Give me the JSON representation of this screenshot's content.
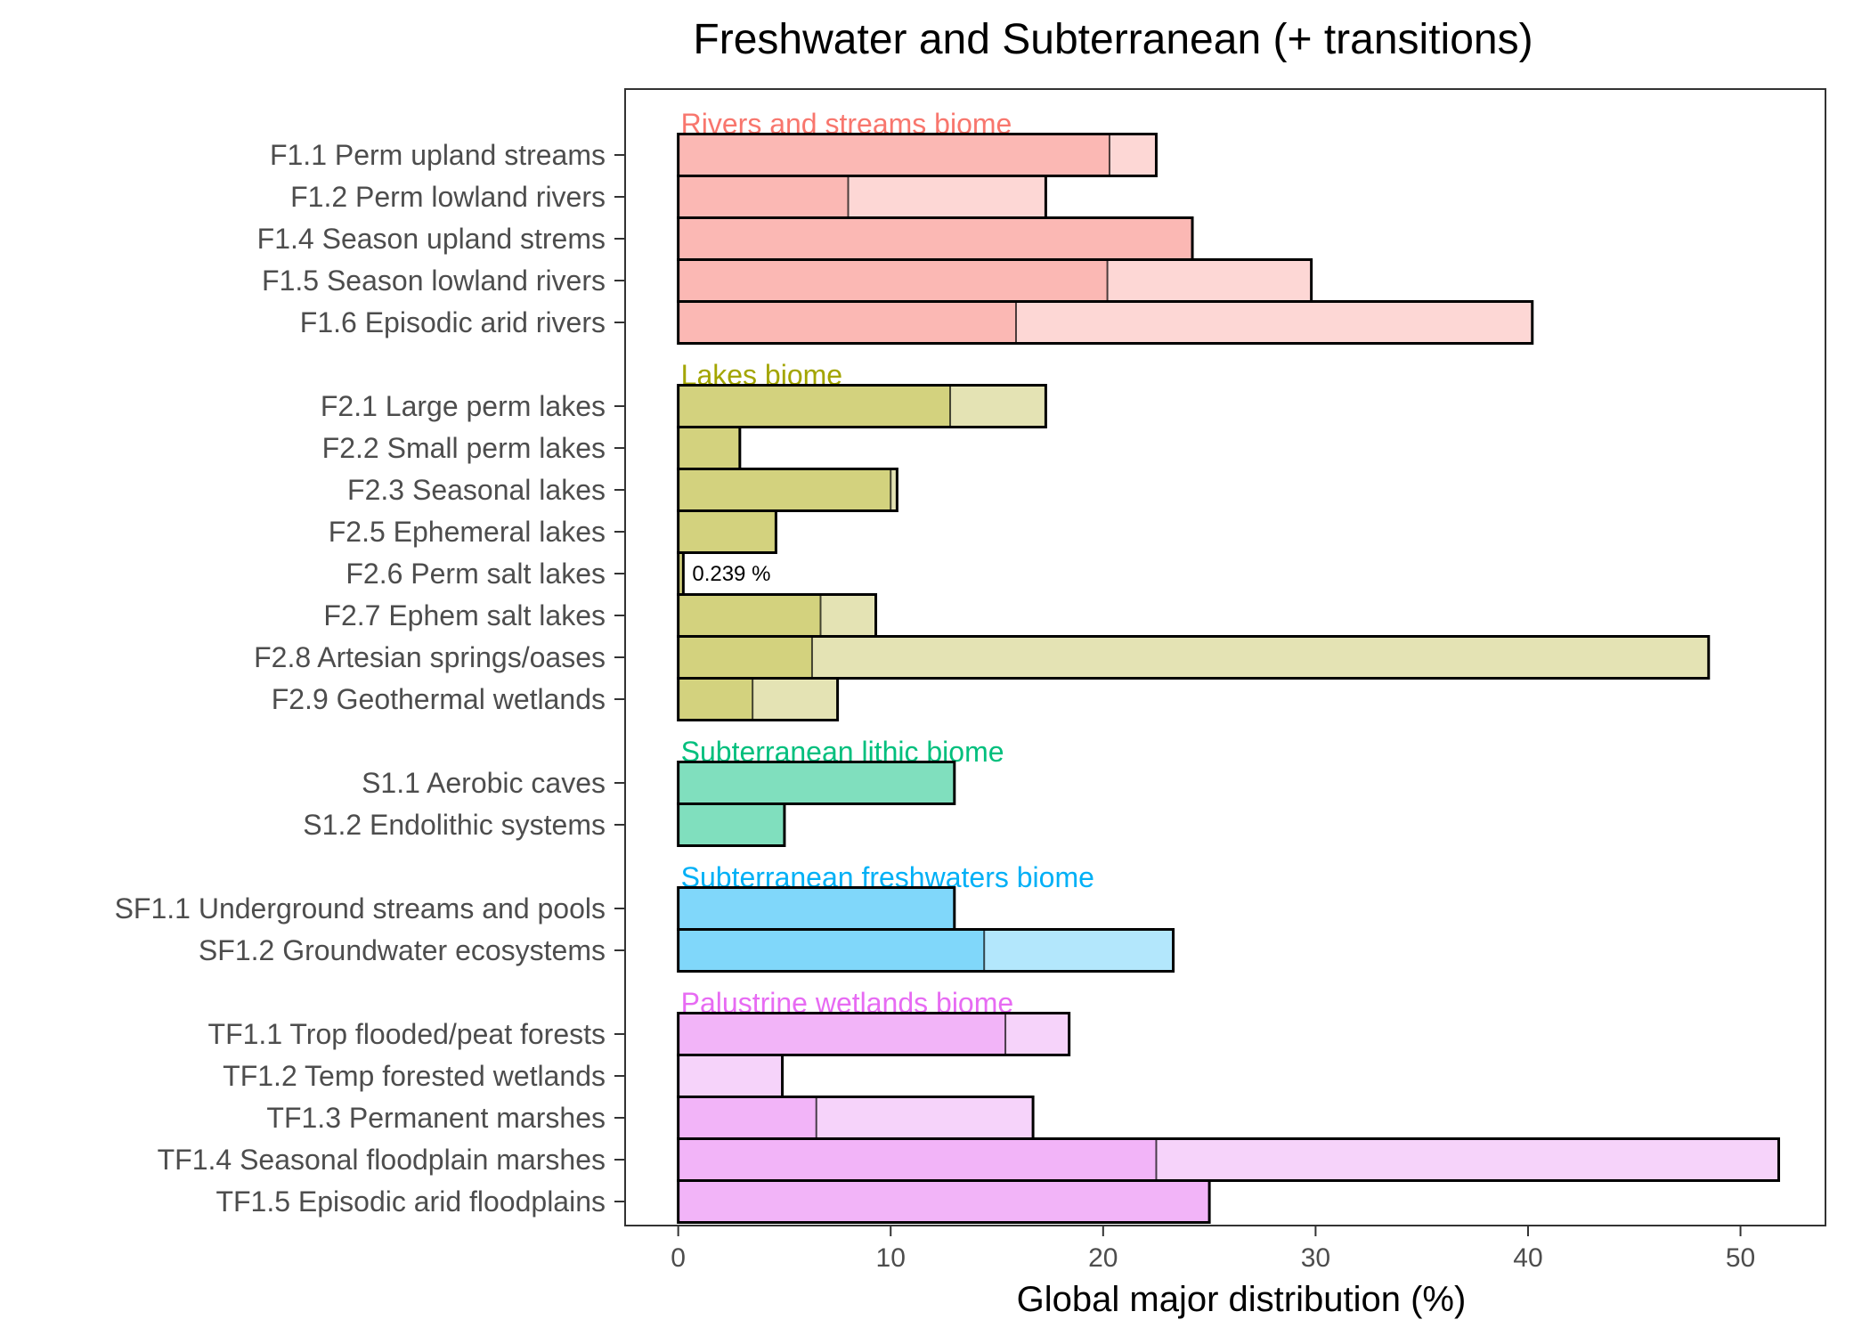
{
  "chart_data": {
    "type": "bar",
    "orientation": "horizontal",
    "stacked": true,
    "title": "Freshwater and Subterranean (+ transitions)",
    "xlabel": "Global major distribution (%)",
    "ylabel": "",
    "xlim": [
      -2.5,
      54
    ],
    "xticks": [
      0,
      10,
      20,
      30,
      40,
      50
    ],
    "grid": false,
    "series": [
      {
        "name": "major",
        "shade": "dark"
      },
      {
        "name": "transitions",
        "shade": "light"
      }
    ],
    "groups": [
      {
        "name": "Rivers and streams biome",
        "color": "#F8766D",
        "fill": "#FBB8B4",
        "fill_light": "#FDD7D5",
        "items": [
          {
            "label": "F1.1 Perm upland streams",
            "major": 20.3,
            "total": 22.5
          },
          {
            "label": "F1.2 Perm lowland rivers",
            "major": 8.0,
            "total": 17.3
          },
          {
            "label": "F1.4 Season upland strems",
            "major": 24.2,
            "total": 24.2
          },
          {
            "label": "F1.5 Season lowland rivers",
            "major": 20.2,
            "total": 29.8
          },
          {
            "label": "F1.6 Episodic arid rivers",
            "major": 15.9,
            "total": 40.2
          }
        ]
      },
      {
        "name": "Lakes biome",
        "color": "#A3A500",
        "fill": "#D3D27E",
        "fill_light": "#E4E3B4",
        "items": [
          {
            "label": "F2.1 Large perm lakes",
            "major": 12.8,
            "total": 17.3
          },
          {
            "label": "F2.2 Small perm lakes",
            "major": 2.9,
            "total": 2.9
          },
          {
            "label": "F2.3 Seasonal lakes",
            "major": 10.0,
            "total": 10.3
          },
          {
            "label": "F2.5 Ephemeral lakes",
            "major": 4.6,
            "total": 4.6
          },
          {
            "label": "F2.6 Perm salt lakes",
            "major": 0.239,
            "total": 0.239,
            "note": "0.239 %"
          },
          {
            "label": "F2.7 Ephem salt lakes",
            "major": 6.7,
            "total": 9.3
          },
          {
            "label": "F2.8 Artesian springs/oases",
            "major": 6.3,
            "total": 48.5
          },
          {
            "label": "F2.9 Geothermal wetlands",
            "major": 3.5,
            "total": 7.5
          }
        ]
      },
      {
        "name": "Subterranean lithic biome",
        "color": "#00BF7D",
        "fill": "#80DFBE",
        "fill_light": "#B3ECD8",
        "items": [
          {
            "label": "S1.1 Aerobic caves",
            "major": 13.0,
            "total": 13.0
          },
          {
            "label": "S1.2 Endolithic systems",
            "major": 5.0,
            "total": 5.0
          }
        ]
      },
      {
        "name": "Subterranean freshwaters biome",
        "color": "#00B0F6",
        "fill": "#80D7FA",
        "fill_light": "#B3E7FC",
        "items": [
          {
            "label": "SF1.1 Underground streams and pools",
            "major": 13.0,
            "total": 13.0
          },
          {
            "label": "SF1.2 Groundwater ecosystems",
            "major": 14.4,
            "total": 23.3
          }
        ]
      },
      {
        "name": "Palustrine wetlands biome",
        "color": "#E76BF3",
        "fill": "#F2B4F8",
        "fill_light": "#F6D3FA",
        "items": [
          {
            "label": "TF1.1 Trop flooded/peat forests",
            "major": 15.4,
            "total": 18.4
          },
          {
            "label": "TF1.2 Temp forested wetlands",
            "major": 0,
            "total": 4.9
          },
          {
            "label": "TF1.3 Permanent marshes",
            "major": 6.5,
            "total": 16.7
          },
          {
            "label": "TF1.4 Seasonal floodplain marshes",
            "major": 22.5,
            "total": 51.8
          },
          {
            "label": "TF1.5 Episodic arid floodplains",
            "major": 25.0,
            "total": 25.0
          }
        ]
      }
    ]
  }
}
